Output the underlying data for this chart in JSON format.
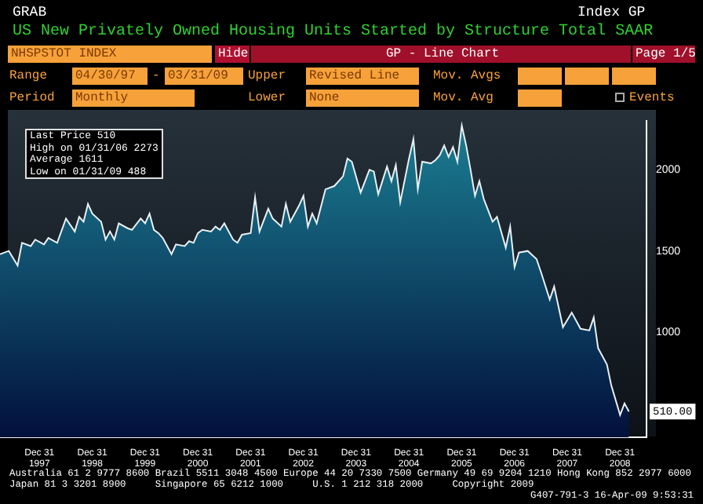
{
  "chart_data": {
    "type": "area",
    "title": "US New Privately Owned Housing Units Started by Structure Total SAAR",
    "annotations": [
      "GRAB",
      "Index GP",
      "NHSPSTOT INDEX",
      "Hide",
      "GP - Line Chart",
      "Page 1/5",
      "Range",
      "04/30/97",
      "-",
      "03/31/09",
      "Upper",
      "Revised Line",
      "Mov. Avgs",
      "Period",
      "Monthly",
      "Lower",
      "None",
      "Mov. Avg",
      "Events",
      "Last Price 510",
      "High on 01/31/06 2273",
      "Average 1611",
      "Low on 01/31/09 488",
      "Australia 61 2 9777 8600 Brazil 5511 3048 4500 Europe 44 20 7330 7500 Germany 49 69 9204 1210 Hong Kong 852 2977 6000",
      "Japan 81 3 3201 8900     Singapore 65 6212 1000     U.S. 1 212 318 2000     Copyright 2009",
      "G407-791-3 16-Apr-09 9:53:31",
      {
        "text": "510.00",
        "x": "2009-03",
        "y": 510
      }
    ],
    "x": [
      "1997-04",
      "1997-06",
      "1997-08",
      "1997-09",
      "1997-11",
      "1997-12",
      "1998-02",
      "1998-03",
      "1998-05",
      "1998-07",
      "1998-09",
      "1998-10",
      "1998-11",
      "1998-12",
      "1999-01",
      "1999-03",
      "1999-04",
      "1999-05",
      "1999-06",
      "1999-07",
      "1999-09",
      "1999-10",
      "1999-12",
      "2000-01",
      "2000-02",
      "2000-03",
      "2000-04",
      "2000-05",
      "2000-07",
      "2000-08",
      "2000-10",
      "2000-11",
      "2000-12",
      "2001-01",
      "2001-02",
      "2001-04",
      "2001-05",
      "2001-06",
      "2001-07",
      "2001-09",
      "2001-10",
      "2001-11",
      "2002-01",
      "2002-02",
      "2002-03",
      "2002-05",
      "2002-06",
      "2002-08",
      "2002-09",
      "2002-10",
      "2002-12",
      "2003-01",
      "2003-02",
      "2003-03",
      "2003-04",
      "2003-06",
      "2003-08",
      "2003-10",
      "2003-11",
      "2003-12",
      "2004-02",
      "2004-04",
      "2004-05",
      "2004-06",
      "2004-08",
      "2004-09",
      "2004-10",
      "2004-11",
      "2005-01",
      "2005-02",
      "2005-03",
      "2005-04",
      "2005-06",
      "2005-07",
      "2005-08",
      "2005-09",
      "2005-10",
      "2005-11",
      "2005-12",
      "2006-01",
      "2006-02",
      "2006-03",
      "2006-04",
      "2006-05",
      "2006-06",
      "2006-08",
      "2006-09",
      "2006-11",
      "2006-12",
      "2007-01",
      "2007-02",
      "2007-04",
      "2007-06",
      "2007-07",
      "2007-09",
      "2007-10",
      "2007-12",
      "2008-02",
      "2008-04",
      "2008-06",
      "2008-07",
      "2008-08",
      "2008-10",
      "2008-11",
      "2009-01",
      "2009-02",
      "2009-03"
    ],
    "series": [
      {
        "color": "#1b7f93",
        "values": [
          1480,
          1500,
          1410,
          1550,
          1530,
          1570,
          1540,
          1580,
          1550,
          1700,
          1620,
          1710,
          1680,
          1790,
          1730,
          1680,
          1570,
          1620,
          1570,
          1670,
          1640,
          1630,
          1700,
          1670,
          1730,
          1630,
          1610,
          1580,
          1480,
          1540,
          1530,
          1560,
          1550,
          1610,
          1630,
          1620,
          1650,
          1630,
          1670,
          1570,
          1550,
          1600,
          1610,
          1830,
          1620,
          1760,
          1700,
          1650,
          1790,
          1680,
          1780,
          1840,
          1650,
          1730,
          1670,
          1880,
          1900,
          1960,
          2070,
          2050,
          1860,
          2000,
          1990,
          1850,
          2020,
          1930,
          2030,
          1800,
          2070,
          2190,
          1880,
          2050,
          2040,
          2060,
          2090,
          2150,
          2080,
          2140,
          2050,
          2273,
          2150,
          2000,
          1840,
          1930,
          1820,
          1680,
          1710,
          1520,
          1650,
          1400,
          1490,
          1500,
          1450,
          1370,
          1200,
          1280,
          1030,
          1120,
          1020,
          1010,
          1090,
          900,
          800,
          670,
          488,
          560,
          510
        ]
      }
    ],
    "xlim": [
      "1997-04",
      "2009-07"
    ],
    "xticks": [
      {
        "value": "1997-12-31",
        "label": "Dec 31 1997"
      },
      {
        "value": "1998-12-31",
        "label": "Dec 31 1998"
      },
      {
        "value": "1999-12-31",
        "label": "Dec 31 1999"
      },
      {
        "value": "2000-12-31",
        "label": "Dec 31 2000"
      },
      {
        "value": "2001-12-31",
        "label": "Dec 31 2001"
      },
      {
        "value": "2002-12-31",
        "label": "Dec 31 2002"
      },
      {
        "value": "2003-12-31",
        "label": "Dec 31 2003"
      },
      {
        "value": "2004-12-31",
        "label": "Dec 31 2004"
      },
      {
        "value": "2005-12-31",
        "label": "Dec 31 2005"
      },
      {
        "value": "2006-12-31",
        "label": "Dec 31 2006"
      },
      {
        "value": "2007-12-31",
        "label": "Dec 31 2007"
      },
      {
        "value": "2008-12-31",
        "label": "Dec 31 2008"
      }
    ],
    "ylim": [
      350,
      2300
    ],
    "yticks": [
      1000,
      1500,
      2000
    ],
    "grid": false,
    "legend": false
  }
}
